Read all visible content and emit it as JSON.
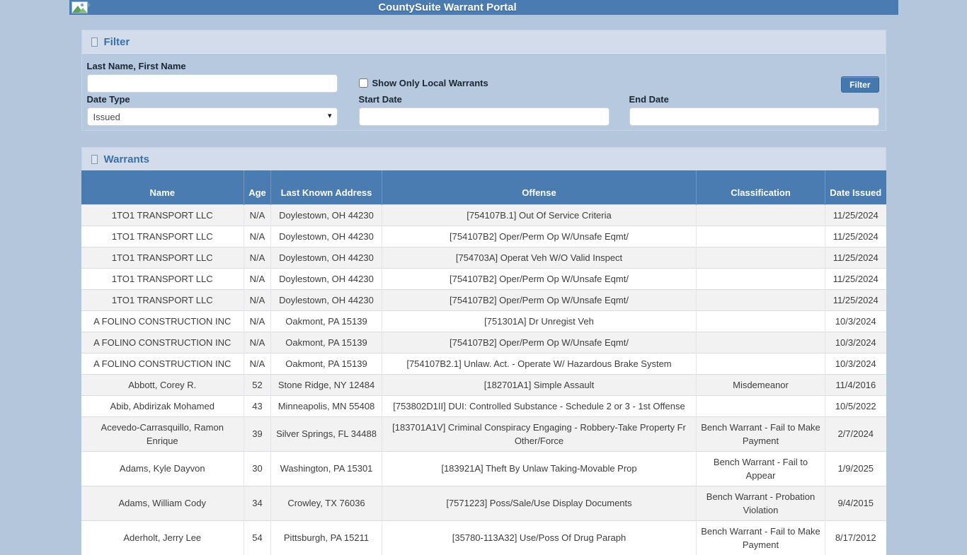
{
  "header": {
    "title": "CountySuite Warrant Portal"
  },
  "filter_panel": {
    "title": "Filter",
    "name_label": "Last Name, First Name",
    "name_value": "",
    "show_local_label": "Show Only Local Warrants",
    "show_local_checked": false,
    "filter_button_label": "Filter",
    "date_type_label": "Date Type",
    "date_type_selected": "Issued",
    "start_date_label": "Start Date",
    "start_date_value": "",
    "end_date_label": "End Date",
    "end_date_value": ""
  },
  "warrants_panel": {
    "title": "Warrants",
    "table": {
      "columns": [
        "Name",
        "Age",
        "Last Known Address",
        "Offense",
        "Classification",
        "Date Issued"
      ],
      "column_keys": [
        "name",
        "age",
        "address",
        "offense",
        "classification",
        "date-issued"
      ],
      "rows": [
        [
          "1TO1 TRANSPORT LLC",
          "N/A",
          "Doylestown, OH 44230",
          "[754107B.1] Out Of Service Criteria",
          "",
          "11/25/2024"
        ],
        [
          "1TO1 TRANSPORT LLC",
          "N/A",
          "Doylestown, OH 44230",
          "[754107B2] Oper/Perm Op W/Unsafe Eqmt/",
          "",
          "11/25/2024"
        ],
        [
          "1TO1 TRANSPORT LLC",
          "N/A",
          "Doylestown, OH 44230",
          "[754703A] Operat Veh W/O Valid Inspect",
          "",
          "11/25/2024"
        ],
        [
          "1TO1 TRANSPORT LLC",
          "N/A",
          "Doylestown, OH 44230",
          "[754107B2] Oper/Perm Op W/Unsafe Eqmt/",
          "",
          "11/25/2024"
        ],
        [
          "1TO1 TRANSPORT LLC",
          "N/A",
          "Doylestown, OH 44230",
          "[754107B2] Oper/Perm Op W/Unsafe Eqmt/",
          "",
          "11/25/2024"
        ],
        [
          "A FOLINO CONSTRUCTION INC",
          "N/A",
          "Oakmont, PA 15139",
          "[751301A] Dr Unregist Veh",
          "",
          "10/3/2024"
        ],
        [
          "A FOLINO CONSTRUCTION INC",
          "N/A",
          "Oakmont, PA 15139",
          "[754107B2] Oper/Perm Op W/Unsafe Eqmt/",
          "",
          "10/3/2024"
        ],
        [
          "A FOLINO CONSTRUCTION INC",
          "N/A",
          "Oakmont, PA 15139",
          "[754107B2.1] Unlaw. Act. - Operate W/ Hazardous Brake System",
          "",
          "10/3/2024"
        ],
        [
          "Abbott, Corey R.",
          "52",
          "Stone Ridge, NY 12484",
          "[182701A1] Simple Assault",
          "Misdemeanor",
          "11/4/2016"
        ],
        [
          "Abib, Abdirizak Mohamed",
          "43",
          "Minneapolis, MN 55408",
          "[753802D1II] DUI: Controlled Substance - Schedule 2 or 3 - 1st Offense",
          "",
          "10/5/2022"
        ],
        [
          "Acevedo-Carrasquillo, Ramon Enrique",
          "39",
          "Silver Springs, FL 34488",
          "[183701A1V] Criminal Conspiracy Engaging - Robbery-Take Property Fr Other/Force",
          "Bench Warrant - Fail to Make Payment",
          "2/7/2024"
        ],
        [
          "Adams, Kyle Dayvon",
          "30",
          "Washington, PA 15301",
          "[183921A] Theft By Unlaw Taking-Movable Prop",
          "Bench Warrant - Fail to Appear",
          "1/9/2025"
        ],
        [
          "Adams, William Cody",
          "34",
          "Crowley, TX 76036",
          "[7571223] Poss/Sale/Use Display Documents",
          "Bench Warrant - Probation Violation",
          "9/4/2015"
        ],
        [
          "Aderholt, Jerry Lee",
          "54",
          "Pittsburgh, PA 15211",
          "[35780-113A32] Use/Poss Of Drug Paraph",
          "Bench Warrant - Fail to Make Payment",
          "8/17/2012"
        ]
      ]
    }
  },
  "icons": {
    "topbar_logo": "broken-image-icon",
    "section_marker": "missing-glyph-box-icon",
    "select_arrow": "chevron-down-icon"
  },
  "colors": {
    "topbar_bg": "#4a7cb1",
    "page_bg": "#b3c6dc",
    "panel_header_bg": "#d3dcea",
    "panel_title_text": "#3a70a8",
    "filter_body_bg": "#b6c9de",
    "table_header_bg": "#4a7cb1",
    "row_alt_bg": "#f2f2f2",
    "button_bg": "#4478ae"
  }
}
